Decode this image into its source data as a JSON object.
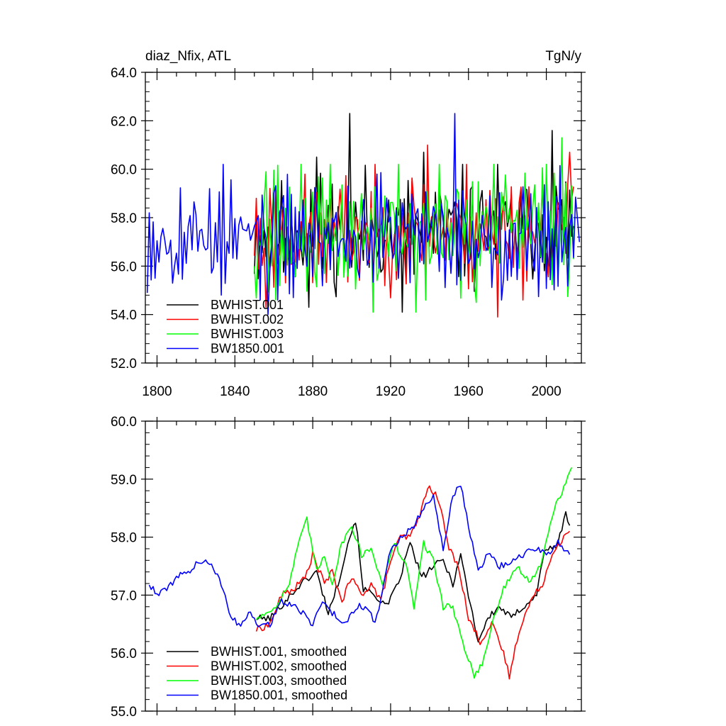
{
  "chart_data": [
    {
      "type": "line",
      "title_left": "diaz_Nfix, ATL",
      "title_right": "TgN/y",
      "xlim": [
        1794,
        2018
      ],
      "ylim": [
        52,
        64
      ],
      "yticks": [
        "52.0",
        "54.0",
        "56.0",
        "58.0",
        "60.0",
        "62.0",
        "64.0"
      ],
      "xticks": [
        "1800",
        "1840",
        "1880",
        "1920",
        "1960",
        "2000"
      ],
      "series": [
        {
          "name": "BWHIST.001",
          "color": "#000000",
          "start": 1850,
          "end": 2014,
          "amp": 1.2,
          "trend": 0.004,
          "seed": 11,
          "spikes": [
            [
              1899,
              62.3
            ],
            [
              1882,
              60.5
            ],
            [
              1926,
              54.1
            ],
            [
              1937,
              60.7
            ],
            [
              2003,
              61.6
            ],
            [
              1878,
              54.3
            ]
          ]
        },
        {
          "name": "BWHIST.002",
          "color": "#ff0000",
          "start": 1850,
          "end": 2014,
          "amp": 1.2,
          "trend": 0.004,
          "seed": 23,
          "spikes": [
            [
              1939,
              61.0
            ],
            [
              1975,
              53.9
            ],
            [
              2012,
              60.7
            ],
            [
              1856,
              54.3
            ]
          ]
        },
        {
          "name": "BWHIST.003",
          "color": "#00ff00",
          "start": 1850,
          "end": 2014,
          "amp": 1.3,
          "trend": 0.004,
          "seed": 37,
          "spikes": [
            [
              1856,
              59.9
            ],
            [
              1911,
              54.1
            ],
            [
              1933,
              54.1
            ],
            [
              2008,
              61.3
            ],
            [
              1964,
              54.5
            ]
          ]
        },
        {
          "name": "BW1850.001",
          "color": "#0000ff",
          "start": 1795,
          "end": 2017,
          "amp": 1.1,
          "trend": 0.0,
          "seed": 53,
          "spikes": [
            [
              1953,
              62.3
            ],
            [
              1913,
              59.8
            ],
            [
              1857,
              54.0
            ],
            [
              1827,
              59.2
            ]
          ]
        }
      ]
    },
    {
      "type": "line",
      "title_left": "",
      "title_right": "",
      "xlim": [
        1794,
        2018
      ],
      "ylim": [
        55,
        60
      ],
      "yticks": [
        "55.0",
        "56.0",
        "57.0",
        "58.0",
        "59.0",
        "60.0"
      ],
      "xticks": [],
      "series": [
        {
          "name": "BWHIST.001, smoothed",
          "color": "#000000",
          "points": [
            [
              1851,
              56.6
            ],
            [
              1858,
              56.6
            ],
            [
              1866,
              56.9
            ],
            [
              1874,
              57.2
            ],
            [
              1882,
              57.4
            ],
            [
              1888,
              56.7
            ],
            [
              1893,
              57.2
            ],
            [
              1898,
              57.9
            ],
            [
              1902,
              58.3
            ],
            [
              1906,
              57.1
            ],
            [
              1912,
              57.0
            ],
            [
              1918,
              56.8
            ],
            [
              1924,
              57.2
            ],
            [
              1930,
              57.9
            ],
            [
              1936,
              57.3
            ],
            [
              1942,
              57.5
            ],
            [
              1947,
              57.6
            ],
            [
              1952,
              57.2
            ],
            [
              1956,
              57.7
            ],
            [
              1960,
              57.0
            ],
            [
              1965,
              56.2
            ],
            [
              1970,
              56.6
            ],
            [
              1976,
              56.8
            ],
            [
              1982,
              56.6
            ],
            [
              1988,
              56.8
            ],
            [
              1995,
              57.0
            ],
            [
              1999,
              57.8
            ],
            [
              2005,
              57.8
            ],
            [
              2010,
              58.4
            ],
            [
              2012,
              58.2
            ]
          ]
        },
        {
          "name": "BWHIST.002, smoothed",
          "color": "#ff0000",
          "points": [
            [
              1851,
              56.4
            ],
            [
              1858,
              56.5
            ],
            [
              1864,
              57.0
            ],
            [
              1870,
              57.1
            ],
            [
              1876,
              57.3
            ],
            [
              1880,
              57.7
            ],
            [
              1886,
              57.2
            ],
            [
              1890,
              57.4
            ],
            [
              1895,
              56.9
            ],
            [
              1900,
              57.3
            ],
            [
              1905,
              57.0
            ],
            [
              1910,
              57.2
            ],
            [
              1915,
              56.9
            ],
            [
              1920,
              57.6
            ],
            [
              1925,
              58.0
            ],
            [
              1930,
              58.0
            ],
            [
              1934,
              58.3
            ],
            [
              1940,
              58.9
            ],
            [
              1945,
              58.6
            ],
            [
              1950,
              57.8
            ],
            [
              1955,
              57.5
            ],
            [
              1960,
              56.6
            ],
            [
              1966,
              56.2
            ],
            [
              1972,
              56.5
            ],
            [
              1978,
              56.0
            ],
            [
              1981,
              55.6
            ],
            [
              1986,
              56.4
            ],
            [
              1992,
              56.9
            ],
            [
              1998,
              57.2
            ],
            [
              2004,
              57.8
            ],
            [
              2012,
              58.1
            ]
          ]
        },
        {
          "name": "BWHIST.003, smoothed",
          "color": "#00ff00",
          "points": [
            [
              1851,
              56.6
            ],
            [
              1857,
              56.7
            ],
            [
              1863,
              56.9
            ],
            [
              1868,
              57.2
            ],
            [
              1872,
              57.8
            ],
            [
              1877,
              58.3
            ],
            [
              1882,
              57.4
            ],
            [
              1886,
              57.7
            ],
            [
              1890,
              57.2
            ],
            [
              1895,
              57.9
            ],
            [
              1900,
              58.2
            ],
            [
              1905,
              57.7
            ],
            [
              1910,
              57.8
            ],
            [
              1916,
              57.2
            ],
            [
              1922,
              57.9
            ],
            [
              1928,
              57.5
            ],
            [
              1932,
              56.8
            ],
            [
              1937,
              57.9
            ],
            [
              1942,
              57.6
            ],
            [
              1947,
              56.8
            ],
            [
              1952,
              56.8
            ],
            [
              1956,
              56.3
            ],
            [
              1960,
              55.9
            ],
            [
              1963,
              55.6
            ],
            [
              1968,
              55.9
            ],
            [
              1973,
              56.6
            ],
            [
              1978,
              57.1
            ],
            [
              1985,
              57.5
            ],
            [
              1992,
              57.2
            ],
            [
              1998,
              57.6
            ],
            [
              2004,
              58.5
            ],
            [
              2010,
              58.9
            ],
            [
              2013,
              59.2
            ]
          ]
        },
        {
          "name": "BW1850.001, smoothed",
          "color": "#0000ff",
          "points": [
            [
              1796,
              57.2
            ],
            [
              1800,
              57.0
            ],
            [
              1805,
              57.1
            ],
            [
              1810,
              57.3
            ],
            [
              1816,
              57.4
            ],
            [
              1822,
              57.6
            ],
            [
              1828,
              57.5
            ],
            [
              1833,
              57.2
            ],
            [
              1838,
              56.6
            ],
            [
              1843,
              56.5
            ],
            [
              1848,
              56.7
            ],
            [
              1852,
              56.5
            ],
            [
              1858,
              56.5
            ],
            [
              1864,
              56.9
            ],
            [
              1870,
              56.8
            ],
            [
              1875,
              56.7
            ],
            [
              1880,
              56.5
            ],
            [
              1885,
              56.9
            ],
            [
              1890,
              56.7
            ],
            [
              1896,
              56.5
            ],
            [
              1902,
              56.8
            ],
            [
              1908,
              56.8
            ],
            [
              1912,
              56.5
            ],
            [
              1916,
              57.1
            ],
            [
              1920,
              57.8
            ],
            [
              1926,
              58.0
            ],
            [
              1932,
              58.2
            ],
            [
              1938,
              58.6
            ],
            [
              1942,
              58.7
            ],
            [
              1947,
              57.8
            ],
            [
              1952,
              58.7
            ],
            [
              1956,
              58.9
            ],
            [
              1960,
              58.2
            ],
            [
              1965,
              57.4
            ],
            [
              1970,
              57.7
            ],
            [
              1976,
              57.5
            ],
            [
              1982,
              57.6
            ],
            [
              1988,
              57.7
            ],
            [
              1994,
              57.8
            ],
            [
              2000,
              57.7
            ],
            [
              2006,
              57.9
            ],
            [
              2012,
              57.7
            ]
          ]
        }
      ]
    }
  ]
}
